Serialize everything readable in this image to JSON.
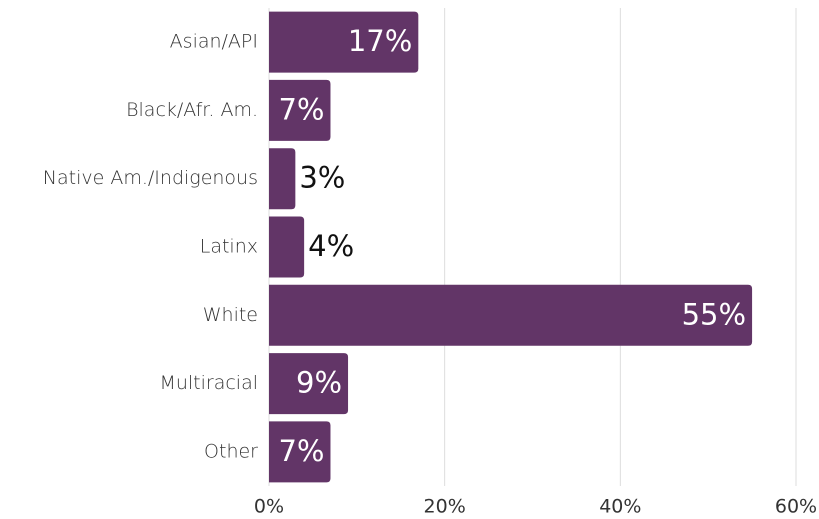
{
  "chart_data": {
    "type": "bar",
    "orientation": "horizontal",
    "categories": [
      "Asian/API",
      "Black/Afr. Am.",
      "Native Am./Indigenous",
      "Latinx",
      "White",
      "Multiracial",
      "Other"
    ],
    "values": [
      17,
      7,
      3,
      4,
      55,
      9,
      7
    ],
    "value_labels": [
      "17%",
      "7%",
      "3%",
      "4%",
      "55%",
      "9%",
      "7%"
    ],
    "color": "#623567",
    "xlim": [
      0,
      60
    ],
    "xticks": [
      {
        "value": 0,
        "label": "0%"
      },
      {
        "value": 20,
        "label": "20%"
      },
      {
        "value": 40,
        "label": "40%"
      },
      {
        "value": 60,
        "label": "60%"
      }
    ],
    "grid": true
  }
}
